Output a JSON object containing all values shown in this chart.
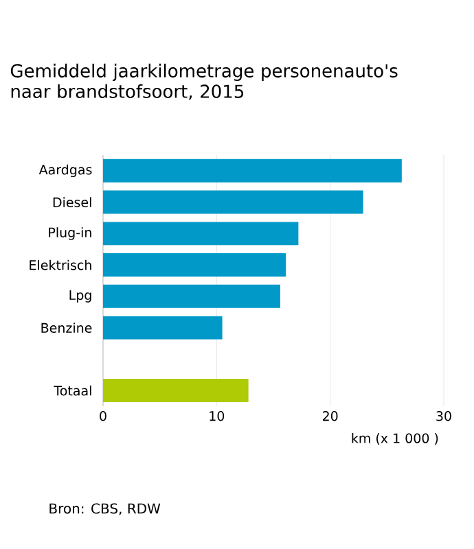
{
  "chart_data": {
    "type": "bar",
    "orientation": "horizontal",
    "title": "Gemiddeld jaarkilometrage personenauto's naar brandstofsoort, 2015",
    "categories": [
      "Aardgas",
      "Diesel",
      "Plug-in",
      "Elektrisch",
      "Lpg",
      "Benzine",
      null,
      "Totaal"
    ],
    "values": [
      26.3,
      22.9,
      17.2,
      16.1,
      15.6,
      10.5,
      null,
      12.8
    ],
    "colors": [
      "#0099c8",
      "#0099c8",
      "#0099c8",
      "#0099c8",
      "#0099c8",
      "#0099c8",
      "#0099c8",
      "#afcb05"
    ],
    "xlabel": "km (x 1 000 )",
    "xlim": [
      0,
      30
    ],
    "xticks": [
      0,
      10,
      20,
      30
    ],
    "grid": "x",
    "annotations": [
      "Bron: CBS, RDW"
    ]
  }
}
